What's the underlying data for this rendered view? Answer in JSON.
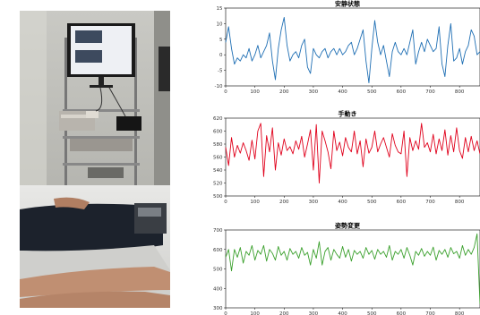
{
  "photo": {
    "description_icon": "photo-medical-monitoring-setup"
  },
  "chart_data": [
    {
      "type": "line",
      "title": "安静状態",
      "color": "#1f6fb4",
      "xlim": [
        0,
        870
      ],
      "ylim": [
        -10,
        15
      ],
      "xticks": [
        0,
        100,
        200,
        300,
        400,
        500,
        600,
        700,
        800
      ],
      "yticks": [
        -10,
        -5,
        0,
        5,
        10,
        15
      ],
      "x": [
        0,
        10,
        20,
        30,
        40,
        50,
        60,
        70,
        80,
        90,
        100,
        110,
        120,
        130,
        140,
        150,
        160,
        170,
        180,
        190,
        200,
        210,
        220,
        230,
        240,
        250,
        260,
        270,
        280,
        290,
        300,
        310,
        320,
        330,
        340,
        350,
        360,
        370,
        380,
        390,
        400,
        410,
        420,
        430,
        440,
        450,
        460,
        470,
        480,
        490,
        500,
        510,
        520,
        530,
        540,
        550,
        560,
        570,
        580,
        590,
        600,
        610,
        620,
        630,
        640,
        650,
        660,
        670,
        680,
        690,
        700,
        710,
        720,
        730,
        740,
        750,
        760,
        770,
        780,
        790,
        800,
        810,
        820,
        830,
        840,
        850,
        860,
        870
      ],
      "values": [
        4,
        9,
        2,
        -3,
        -1,
        -2,
        0,
        -1,
        2,
        -2,
        0,
        3,
        -1,
        1,
        3,
        7,
        -2,
        -8,
        2,
        8,
        12,
        3,
        -2,
        0,
        1,
        -1,
        3,
        5,
        -4,
        -6,
        2,
        0,
        -1,
        1,
        2,
        -1,
        1,
        2,
        0,
        2,
        0,
        1,
        3,
        4,
        0,
        2,
        5,
        8,
        -2,
        -9,
        2,
        11,
        4,
        0,
        3,
        -2,
        -7,
        1,
        4,
        1,
        0,
        2,
        0,
        4,
        8,
        -3,
        1,
        4,
        1,
        5,
        3,
        1,
        2,
        9,
        -3,
        -7,
        3,
        10,
        -2,
        -1,
        2,
        -3,
        1,
        3,
        8,
        6,
        0,
        1
      ]
    },
    {
      "type": "line",
      "title": "手動き",
      "color": "#e0001b",
      "xlim": [
        0,
        870
      ],
      "ylim": [
        500,
        620
      ],
      "xticks": [
        0,
        100,
        200,
        300,
        400,
        500,
        600,
        700,
        800
      ],
      "yticks": [
        500,
        520,
        540,
        560,
        580,
        600,
        620
      ],
      "x": [
        0,
        10,
        20,
        30,
        40,
        50,
        60,
        70,
        80,
        90,
        100,
        110,
        120,
        130,
        140,
        150,
        160,
        170,
        180,
        190,
        200,
        210,
        220,
        230,
        240,
        250,
        260,
        270,
        280,
        290,
        300,
        310,
        320,
        330,
        340,
        350,
        360,
        370,
        380,
        390,
        400,
        410,
        420,
        430,
        440,
        450,
        460,
        470,
        480,
        490,
        500,
        510,
        520,
        530,
        540,
        550,
        560,
        570,
        580,
        590,
        600,
        610,
        620,
        630,
        640,
        650,
        660,
        670,
        680,
        690,
        700,
        710,
        720,
        730,
        740,
        750,
        760,
        770,
        780,
        790,
        800,
        810,
        820,
        830,
        840,
        850,
        860,
        870
      ],
      "values": [
        575,
        547,
        590,
        560,
        578,
        566,
        582,
        570,
        555,
        586,
        557,
        600,
        612,
        530,
        593,
        568,
        605,
        540,
        582,
        563,
        588,
        570,
        576,
        565,
        585,
        572,
        592,
        560,
        580,
        602,
        540,
        610,
        520,
        600,
        585,
        568,
        542,
        600,
        570,
        583,
        562,
        590,
        575,
        568,
        600,
        565,
        585,
        545,
        588,
        566,
        575,
        600,
        568,
        580,
        590,
        575,
        560,
        596,
        578,
        568,
        565,
        600,
        530,
        590,
        570,
        585,
        572,
        612,
        575,
        582,
        568,
        595,
        565,
        588,
        570,
        602,
        563,
        593,
        568,
        605,
        570,
        558,
        590,
        568,
        592,
        570,
        585,
        565
      ]
    },
    {
      "type": "line",
      "title": "姿勢変更",
      "color": "#3aa02c",
      "xlim": [
        0,
        870
      ],
      "ylim": [
        300,
        700
      ],
      "xticks": [
        0,
        100,
        200,
        300,
        400,
        500,
        600,
        700,
        800
      ],
      "yticks": [
        300,
        400,
        500,
        600,
        700
      ],
      "x": [
        0,
        10,
        20,
        30,
        40,
        50,
        60,
        70,
        80,
        90,
        100,
        110,
        120,
        130,
        140,
        150,
        160,
        170,
        180,
        190,
        200,
        210,
        220,
        230,
        240,
        250,
        260,
        270,
        280,
        290,
        300,
        310,
        320,
        330,
        340,
        350,
        360,
        370,
        380,
        390,
        400,
        410,
        420,
        430,
        440,
        450,
        460,
        470,
        480,
        490,
        500,
        510,
        520,
        530,
        540,
        550,
        560,
        570,
        580,
        590,
        600,
        610,
        620,
        630,
        640,
        650,
        660,
        670,
        680,
        690,
        700,
        710,
        720,
        730,
        740,
        750,
        760,
        770,
        780,
        790,
        800,
        810,
        820,
        830,
        840,
        850,
        860,
        870
      ],
      "values": [
        560,
        600,
        490,
        600,
        560,
        610,
        530,
        590,
        570,
        620,
        545,
        595,
        575,
        620,
        540,
        600,
        580,
        545,
        615,
        570,
        590,
        545,
        605,
        575,
        590,
        555,
        610,
        570,
        585,
        520,
        600,
        555,
        640,
        520,
        590,
        610,
        545,
        600,
        575,
        555,
        615,
        560,
        600,
        540,
        595,
        575,
        590,
        555,
        610,
        575,
        595,
        550,
        600,
        575,
        590,
        560,
        620,
        545,
        590,
        575,
        600,
        555,
        610,
        570,
        520,
        590,
        570,
        605,
        565,
        590,
        570,
        612,
        545,
        595,
        575,
        600,
        560,
        610,
        578,
        590,
        555,
        620,
        570,
        600,
        575,
        610,
        680,
        320
      ]
    }
  ]
}
